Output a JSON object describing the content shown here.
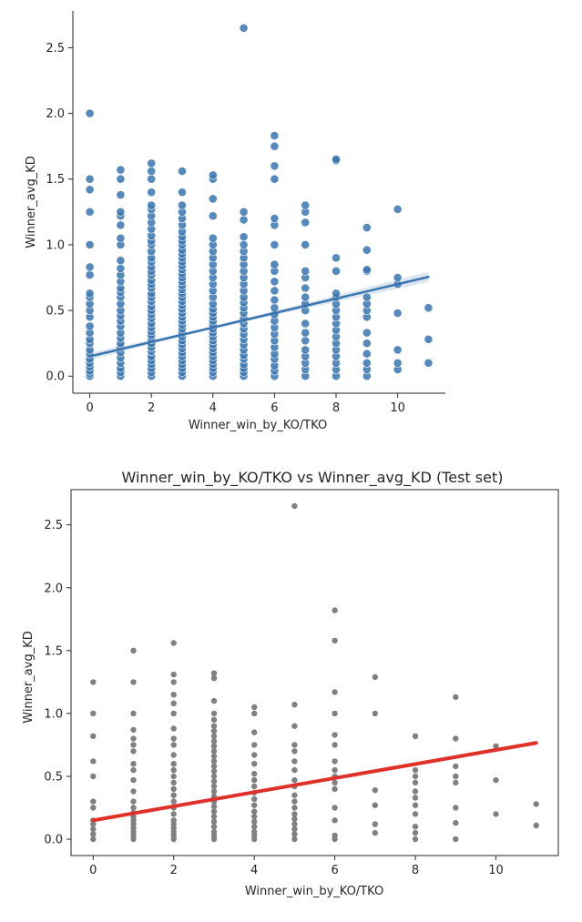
{
  "chart_data": [
    {
      "type": "scatter",
      "style": "seaborn-regplot",
      "title": "",
      "xlabel": "Winner_win_by_KO/TKO",
      "ylabel": "Winner_avg_KD",
      "xlim": [
        -0.55,
        11.55
      ],
      "ylim": [
        -0.13,
        2.78
      ],
      "xticks": [
        "0",
        "2",
        "4",
        "6",
        "8",
        "10"
      ],
      "yticks": [
        "0.0",
        "0.5",
        "1.0",
        "1.5",
        "2.0",
        "2.5"
      ],
      "spines": "left-bottom",
      "grid": false,
      "point_color": "#3a75b0",
      "line_color": "#3a75b0",
      "band_color": "#3a75b0",
      "regression": {
        "intercept": 0.15,
        "slope": 0.055,
        "x_range": [
          0,
          11
        ]
      },
      "confidence_band": {
        "x": [
          0,
          2,
          4,
          6,
          8,
          10,
          11
        ],
        "half_width": [
          0.028,
          0.016,
          0.012,
          0.016,
          0.025,
          0.034,
          0.039
        ]
      },
      "series": [
        {
          "x": 0,
          "y": [
            0.0,
            0.02,
            0.04,
            0.07,
            0.1,
            0.13,
            0.17,
            0.2,
            0.25,
            0.28,
            0.33,
            0.38,
            0.45,
            0.5,
            0.55,
            0.6,
            0.63,
            0.77,
            0.83,
            1.0,
            1.25,
            1.42,
            1.5,
            2.0
          ]
        },
        {
          "x": 1,
          "y": [
            0.0,
            0.03,
            0.06,
            0.1,
            0.14,
            0.18,
            0.22,
            0.25,
            0.29,
            0.33,
            0.38,
            0.42,
            0.46,
            0.5,
            0.55,
            0.6,
            0.64,
            0.67,
            0.72,
            0.77,
            0.82,
            0.88,
            1.0,
            1.05,
            1.15,
            1.22,
            1.25,
            1.38,
            1.5,
            1.57
          ]
        },
        {
          "x": 2,
          "y": [
            0.0,
            0.03,
            0.06,
            0.09,
            0.12,
            0.15,
            0.19,
            0.22,
            0.25,
            0.28,
            0.31,
            0.34,
            0.37,
            0.4,
            0.44,
            0.47,
            0.5,
            0.53,
            0.57,
            0.6,
            0.63,
            0.67,
            0.7,
            0.73,
            0.77,
            0.8,
            0.83,
            0.87,
            0.9,
            0.95,
            1.0,
            1.03,
            1.07,
            1.12,
            1.17,
            1.22,
            1.27,
            1.3,
            1.4,
            1.5,
            1.56,
            1.62
          ]
        },
        {
          "x": 3,
          "y": [
            0.0,
            0.03,
            0.06,
            0.09,
            0.12,
            0.15,
            0.18,
            0.21,
            0.24,
            0.27,
            0.3,
            0.33,
            0.36,
            0.39,
            0.42,
            0.45,
            0.48,
            0.51,
            0.54,
            0.57,
            0.6,
            0.63,
            0.66,
            0.69,
            0.72,
            0.75,
            0.78,
            0.81,
            0.84,
            0.87,
            0.9,
            0.93,
            0.96,
            1.0,
            1.03,
            1.06,
            1.1,
            1.15,
            1.2,
            1.25,
            1.3,
            1.4,
            1.56
          ]
        },
        {
          "x": 4,
          "y": [
            0.0,
            0.03,
            0.06,
            0.09,
            0.12,
            0.15,
            0.18,
            0.21,
            0.24,
            0.27,
            0.3,
            0.33,
            0.36,
            0.39,
            0.42,
            0.45,
            0.48,
            0.51,
            0.55,
            0.6,
            0.65,
            0.7,
            0.75,
            0.8,
            0.85,
            0.9,
            0.95,
            1.0,
            1.05,
            1.22,
            1.35,
            1.5,
            1.53
          ]
        },
        {
          "x": 5,
          "y": [
            0.0,
            0.03,
            0.06,
            0.09,
            0.13,
            0.16,
            0.2,
            0.24,
            0.28,
            0.32,
            0.36,
            0.4,
            0.44,
            0.48,
            0.52,
            0.56,
            0.6,
            0.65,
            0.7,
            0.75,
            0.8,
            0.85,
            0.9,
            0.95,
            1.0,
            1.06,
            1.19,
            1.25,
            2.65
          ]
        },
        {
          "x": 6,
          "y": [
            0.0,
            0.04,
            0.08,
            0.13,
            0.17,
            0.22,
            0.27,
            0.32,
            0.37,
            0.42,
            0.47,
            0.52,
            0.58,
            0.65,
            0.72,
            0.8,
            0.85,
            1.0,
            1.15,
            1.2,
            1.5,
            1.6,
            1.75,
            1.83
          ]
        },
        {
          "x": 7,
          "y": [
            0.0,
            0.05,
            0.1,
            0.15,
            0.2,
            0.27,
            0.33,
            0.4,
            0.5,
            0.55,
            0.6,
            0.67,
            0.75,
            0.8,
            1.0,
            1.17,
            1.25,
            1.3
          ]
        },
        {
          "x": 8,
          "y": [
            0.0,
            0.05,
            0.1,
            0.15,
            0.2,
            0.25,
            0.3,
            0.35,
            0.4,
            0.45,
            0.5,
            0.55,
            0.6,
            0.63,
            0.8,
            0.9,
            1.64,
            1.65
          ]
        },
        {
          "x": 9,
          "y": [
            0.0,
            0.05,
            0.1,
            0.17,
            0.25,
            0.33,
            0.45,
            0.5,
            0.55,
            0.6,
            0.8,
            0.81,
            0.96,
            1.13
          ]
        },
        {
          "x": 10,
          "y": [
            0.05,
            0.1,
            0.2,
            0.48,
            0.7,
            0.75,
            1.27
          ]
        },
        {
          "x": 11,
          "y": [
            0.1,
            0.28,
            0.52
          ]
        }
      ]
    },
    {
      "type": "scatter",
      "style": "matplotlib",
      "title": "Winner_win_by_KO/TKO vs Winner_avg_KD (Test set)",
      "xlabel": "Winner_win_by_KO/TKO",
      "ylabel": "Winner_avg_KD",
      "xlim": [
        -0.55,
        11.55
      ],
      "ylim": [
        -0.13,
        2.78
      ],
      "xticks": [
        "0",
        "2",
        "4",
        "6",
        "8",
        "10"
      ],
      "yticks": [
        "0.0",
        "0.5",
        "1.0",
        "1.5",
        "2.0",
        "2.5"
      ],
      "spines": "box",
      "grid": false,
      "point_color": "#808080",
      "line_color": "#e0302a",
      "regression": {
        "intercept": 0.15,
        "slope": 0.056,
        "x_range": [
          0,
          11
        ]
      },
      "series": [
        {
          "x": 0,
          "y": [
            0.0,
            0.04,
            0.08,
            0.12,
            0.15,
            0.25,
            0.3,
            0.5,
            0.62,
            0.82,
            1.0,
            1.25
          ]
        },
        {
          "x": 1,
          "y": [
            0.0,
            0.03,
            0.06,
            0.09,
            0.12,
            0.15,
            0.18,
            0.21,
            0.25,
            0.3,
            0.38,
            0.47,
            0.55,
            0.6,
            0.7,
            0.75,
            0.8,
            0.87,
            1.0,
            1.25,
            1.5
          ]
        },
        {
          "x": 2,
          "y": [
            0.0,
            0.03,
            0.06,
            0.09,
            0.12,
            0.15,
            0.2,
            0.25,
            0.3,
            0.35,
            0.4,
            0.45,
            0.5,
            0.55,
            0.6,
            0.67,
            0.75,
            0.8,
            0.88,
            1.0,
            1.08,
            1.15,
            1.25,
            1.31,
            1.56
          ]
        },
        {
          "x": 3,
          "y": [
            0.0,
            0.03,
            0.06,
            0.1,
            0.14,
            0.18,
            0.22,
            0.26,
            0.3,
            0.34,
            0.38,
            0.42,
            0.46,
            0.5,
            0.54,
            0.58,
            0.62,
            0.66,
            0.7,
            0.74,
            0.78,
            0.82,
            0.86,
            0.9,
            0.95,
            1.0,
            1.1,
            1.28,
            1.32
          ]
        },
        {
          "x": 4,
          "y": [
            0.0,
            0.03,
            0.06,
            0.1,
            0.14,
            0.18,
            0.22,
            0.27,
            0.32,
            0.37,
            0.42,
            0.47,
            0.52,
            0.6,
            0.67,
            0.75,
            0.85,
            1.0,
            1.05
          ]
        },
        {
          "x": 5,
          "y": [
            0.0,
            0.04,
            0.08,
            0.12,
            0.16,
            0.2,
            0.25,
            0.3,
            0.35,
            0.42,
            0.47,
            0.55,
            0.62,
            0.7,
            0.75,
            0.9,
            1.07,
            2.65
          ]
        },
        {
          "x": 6,
          "y": [
            0.0,
            0.03,
            0.15,
            0.25,
            0.4,
            0.45,
            0.5,
            0.55,
            0.62,
            0.75,
            0.83,
            1.0,
            1.17,
            1.58,
            1.82
          ]
        },
        {
          "x": 7,
          "y": [
            0.05,
            0.12,
            0.27,
            0.39,
            1.0,
            1.29
          ]
        },
        {
          "x": 8,
          "y": [
            0.0,
            0.05,
            0.1,
            0.2,
            0.27,
            0.33,
            0.38,
            0.45,
            0.5,
            0.55,
            0.82
          ]
        },
        {
          "x": 9,
          "y": [
            0.0,
            0.13,
            0.25,
            0.45,
            0.5,
            0.58,
            0.8,
            1.13
          ]
        },
        {
          "x": 10,
          "y": [
            0.2,
            0.47,
            0.74
          ]
        },
        {
          "x": 11,
          "y": [
            0.11,
            0.28
          ]
        }
      ]
    }
  ]
}
